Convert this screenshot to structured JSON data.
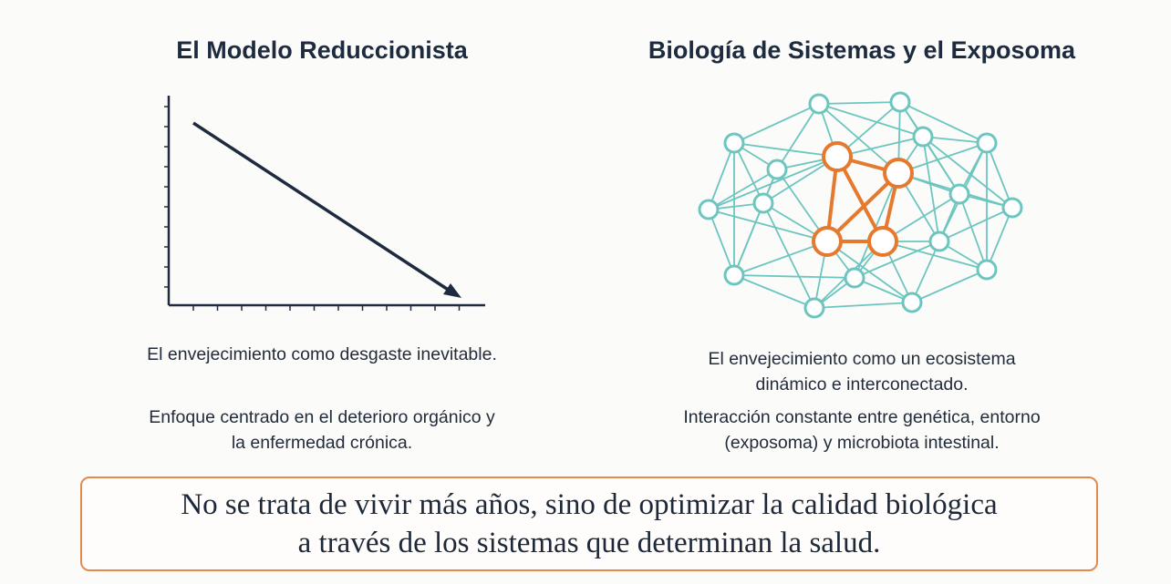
{
  "left_panel": {
    "title": "El Modelo Reduccionista",
    "line1": "El envejecimiento como desgaste inevitable.",
    "line2a": "Enfoque centrado en el deterioro orgánico y",
    "line2b": "la enfermedad crónica."
  },
  "right_panel": {
    "title": "Biología de Sistemas y el Exposoma",
    "line1a": "El envejecimiento como un ecosistema",
    "line1b": "dinámico e interconectado.",
    "line2a": "Interacción constante entre genética, entorno",
    "line2b": "(exposoma) y microbiota intestinal."
  },
  "quote": {
    "line1": "No se trata de vivir más años, sino de optimizar la calidad biológica",
    "line2": "a través de los sistemas que determinan la salud."
  },
  "colors": {
    "navy": "#1e2b3f",
    "teal": "#6cc6bf",
    "orange": "#e57a2e",
    "quote_border": "#e58a4a"
  },
  "icons": {
    "left": "declining-line-chart",
    "right": "network-graph"
  }
}
